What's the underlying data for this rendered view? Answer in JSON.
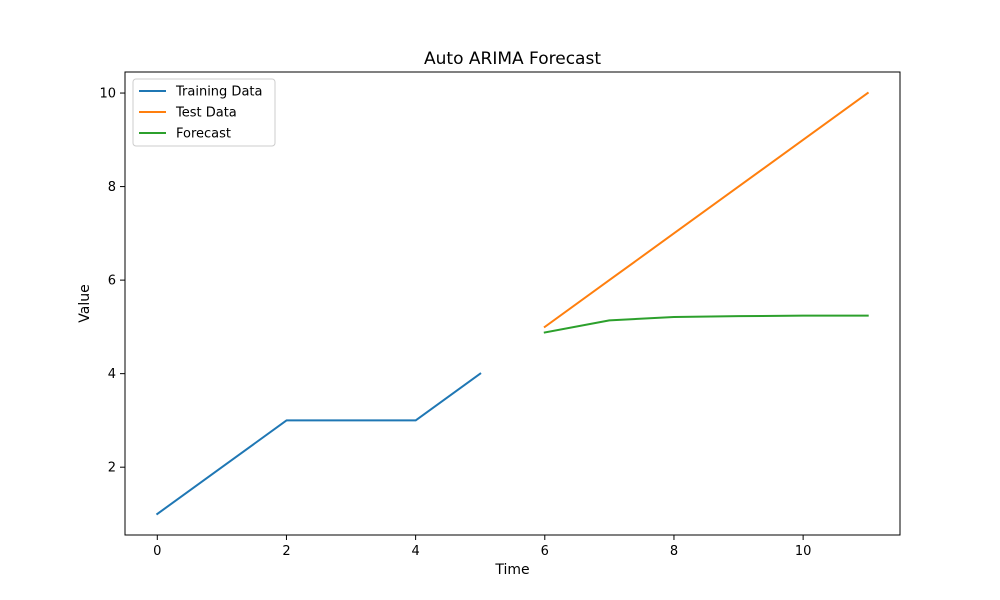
{
  "chart_data": {
    "type": "line",
    "title": "Auto ARIMA Forecast",
    "xlabel": "Time",
    "ylabel": "Value",
    "xlim": [
      -0.5,
      11.5
    ],
    "ylim": [
      0.55,
      10.45
    ],
    "xticks": [
      0,
      2,
      4,
      6,
      8,
      10
    ],
    "yticks": [
      2,
      4,
      6,
      8,
      10
    ],
    "grid": false,
    "legend_position": "upper-left",
    "series": [
      {
        "name": "Training Data",
        "color": "#1f77b4",
        "x": [
          0,
          1,
          2,
          3,
          4,
          5
        ],
        "y": [
          1,
          2,
          3,
          3,
          3,
          4
        ]
      },
      {
        "name": "Test Data",
        "color": "#ff7f0e",
        "x": [
          6,
          7,
          8,
          9,
          10,
          11
        ],
        "y": [
          5,
          6,
          7,
          8,
          9,
          10
        ]
      },
      {
        "name": "Forecast",
        "color": "#2ca02c",
        "x": [
          6,
          7,
          8,
          9,
          10,
          11
        ],
        "y": [
          4.88,
          5.14,
          5.21,
          5.23,
          5.24,
          5.24
        ]
      }
    ]
  }
}
